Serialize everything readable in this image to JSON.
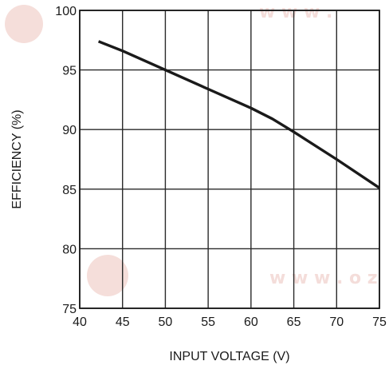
{
  "chart_data": {
    "type": "line",
    "title": "",
    "xlabel": "INPUT VOLTAGE (V)",
    "ylabel": "EFFICIENCY (%)",
    "xlim": [
      40,
      75
    ],
    "ylim": [
      75,
      100
    ],
    "x_ticks": [
      40,
      45,
      50,
      55,
      60,
      65,
      70,
      75
    ],
    "y_ticks": [
      75,
      80,
      85,
      90,
      95,
      100
    ],
    "grid": true,
    "legend": "none",
    "line_color": "#1a1a1a",
    "series": [
      {
        "x": [
          42.2,
          45,
          50,
          55,
          60,
          62.5,
          65,
          70,
          75
        ],
        "y": [
          97.4,
          96.6,
          95.0,
          93.4,
          91.8,
          90.9,
          89.8,
          87.5,
          85.1
        ]
      }
    ]
  }
}
